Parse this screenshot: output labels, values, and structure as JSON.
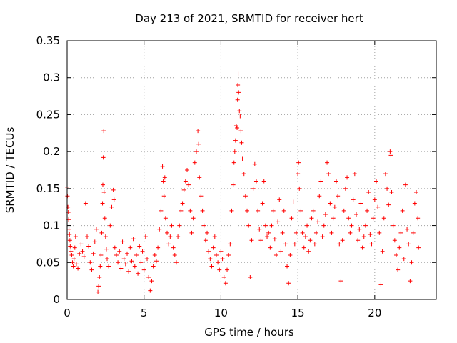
{
  "chart_data": {
    "type": "scatter",
    "title": "Day 213 of 2021, SRMTID for receiver hert",
    "xlabel": "GPS time / hours",
    "ylabel": "SRMTID / TECUs",
    "xlim": [
      0,
      24
    ],
    "ylim": [
      0,
      0.35
    ],
    "xticks": [
      0,
      5,
      10,
      15,
      20
    ],
    "xtick_labels": [
      "0",
      "5",
      "10",
      "15",
      "20"
    ],
    "yticks": [
      0,
      0.05,
      0.1,
      0.15,
      0.2,
      0.25,
      0.3,
      0.35
    ],
    "ytick_labels": [
      "0",
      "0.05",
      "0.1",
      "0.15",
      "0.2",
      "0.25",
      "0.3",
      "0.35"
    ],
    "grid": true,
    "marker": "plus",
    "color": "#ff0000",
    "series": [
      {
        "name": "SRMTID",
        "points": [
          [
            0.0,
            0.152
          ],
          [
            0.02,
            0.14
          ],
          [
            0.05,
            0.125
          ],
          [
            0.08,
            0.118
          ],
          [
            0.1,
            0.108
          ],
          [
            0.12,
            0.095
          ],
          [
            0.15,
            0.088
          ],
          [
            0.18,
            0.08
          ],
          [
            0.2,
            0.072
          ],
          [
            0.25,
            0.065
          ],
          [
            0.3,
            0.06
          ],
          [
            0.35,
            0.05
          ],
          [
            0.4,
            0.045
          ],
          [
            0.45,
            0.055
          ],
          [
            0.5,
            0.07
          ],
          [
            0.55,
            0.085
          ],
          [
            0.6,
            0.048
          ],
          [
            0.7,
            0.042
          ],
          [
            0.8,
            0.062
          ],
          [
            0.9,
            0.075
          ],
          [
            1.0,
            0.065
          ],
          [
            1.1,
            0.058
          ],
          [
            1.2,
            0.13
          ],
          [
            1.3,
            0.085
          ],
          [
            1.4,
            0.072
          ],
          [
            1.5,
            0.05
          ],
          [
            1.6,
            0.04
          ],
          [
            1.7,
            0.062
          ],
          [
            1.8,
            0.078
          ],
          [
            1.9,
            0.095
          ],
          [
            2.0,
            0.01
          ],
          [
            2.05,
            0.018
          ],
          [
            2.1,
            0.03
          ],
          [
            2.15,
            0.045
          ],
          [
            2.2,
            0.06
          ],
          [
            2.25,
            0.09
          ],
          [
            2.3,
            0.13
          ],
          [
            2.32,
            0.155
          ],
          [
            2.35,
            0.192
          ],
          [
            2.38,
            0.228
          ],
          [
            2.4,
            0.145
          ],
          [
            2.45,
            0.11
          ],
          [
            2.5,
            0.085
          ],
          [
            2.55,
            0.068
          ],
          [
            2.6,
            0.055
          ],
          [
            2.7,
            0.045
          ],
          [
            2.8,
            0.1
          ],
          [
            2.9,
            0.125
          ],
          [
            3.0,
            0.148
          ],
          [
            3.05,
            0.135
          ],
          [
            3.1,
            0.07
          ],
          [
            3.2,
            0.06
          ],
          [
            3.3,
            0.05
          ],
          [
            3.4,
            0.065
          ],
          [
            3.5,
            0.042
          ],
          [
            3.6,
            0.078
          ],
          [
            3.7,
            0.055
          ],
          [
            3.8,
            0.048
          ],
          [
            3.9,
            0.062
          ],
          [
            4.0,
            0.038
          ],
          [
            4.1,
            0.07
          ],
          [
            4.2,
            0.052
          ],
          [
            4.3,
            0.082
          ],
          [
            4.4,
            0.045
          ],
          [
            4.5,
            0.06
          ],
          [
            4.6,
            0.035
          ],
          [
            4.7,
            0.072
          ],
          [
            4.8,
            0.05
          ],
          [
            4.9,
            0.065
          ],
          [
            5.0,
            0.04
          ],
          [
            5.1,
            0.085
          ],
          [
            5.2,
            0.055
          ],
          [
            5.3,
            0.03
          ],
          [
            5.4,
            0.012
          ],
          [
            5.5,
            0.025
          ],
          [
            5.6,
            0.045
          ],
          [
            5.7,
            0.06
          ],
          [
            5.8,
            0.052
          ],
          [
            5.9,
            0.07
          ],
          [
            6.0,
            0.095
          ],
          [
            6.1,
            0.12
          ],
          [
            6.2,
            0.18
          ],
          [
            6.25,
            0.16
          ],
          [
            6.3,
            0.14
          ],
          [
            6.35,
            0.165
          ],
          [
            6.4,
            0.11
          ],
          [
            6.5,
            0.09
          ],
          [
            6.6,
            0.075
          ],
          [
            6.7,
            0.085
          ],
          [
            6.8,
            0.1
          ],
          [
            6.9,
            0.07
          ],
          [
            7.0,
            0.06
          ],
          [
            7.1,
            0.05
          ],
          [
            7.2,
            0.085
          ],
          [
            7.3,
            0.1
          ],
          [
            7.4,
            0.12
          ],
          [
            7.5,
            0.13
          ],
          [
            7.6,
            0.148
          ],
          [
            7.7,
            0.16
          ],
          [
            7.8,
            0.175
          ],
          [
            7.9,
            0.155
          ],
          [
            8.0,
            0.12
          ],
          [
            8.1,
            0.09
          ],
          [
            8.2,
            0.11
          ],
          [
            8.3,
            0.185
          ],
          [
            8.4,
            0.2
          ],
          [
            8.5,
            0.228
          ],
          [
            8.55,
            0.21
          ],
          [
            8.6,
            0.165
          ],
          [
            8.7,
            0.14
          ],
          [
            8.8,
            0.12
          ],
          [
            8.9,
            0.1
          ],
          [
            9.0,
            0.08
          ],
          [
            9.1,
            0.09
          ],
          [
            9.2,
            0.065
          ],
          [
            9.3,
            0.055
          ],
          [
            9.4,
            0.045
          ],
          [
            9.5,
            0.07
          ],
          [
            9.6,
            0.085
          ],
          [
            9.7,
            0.06
          ],
          [
            9.8,
            0.05
          ],
          [
            9.9,
            0.04
          ],
          [
            10.0,
            0.065
          ],
          [
            10.1,
            0.055
          ],
          [
            10.2,
            0.03
          ],
          [
            10.3,
            0.022
          ],
          [
            10.4,
            0.04
          ],
          [
            10.5,
            0.06
          ],
          [
            10.6,
            0.075
          ],
          [
            10.7,
            0.12
          ],
          [
            10.8,
            0.155
          ],
          [
            10.85,
            0.185
          ],
          [
            10.9,
            0.2
          ],
          [
            10.95,
            0.215
          ],
          [
            11.0,
            0.235
          ],
          [
            11.05,
            0.232
          ],
          [
            11.08,
            0.27
          ],
          [
            11.1,
            0.29
          ],
          [
            11.12,
            0.305
          ],
          [
            11.15,
            0.28
          ],
          [
            11.2,
            0.255
          ],
          [
            11.25,
            0.248
          ],
          [
            11.3,
            0.228
          ],
          [
            11.35,
            0.212
          ],
          [
            11.4,
            0.19
          ],
          [
            11.5,
            0.17
          ],
          [
            11.6,
            0.14
          ],
          [
            11.7,
            0.12
          ],
          [
            11.8,
            0.1
          ],
          [
            11.9,
            0.03
          ],
          [
            12.0,
            0.08
          ],
          [
            12.1,
            0.15
          ],
          [
            12.2,
            0.183
          ],
          [
            12.3,
            0.16
          ],
          [
            12.4,
            0.12
          ],
          [
            12.5,
            0.095
          ],
          [
            12.6,
            0.08
          ],
          [
            12.7,
            0.13
          ],
          [
            12.8,
            0.16
          ],
          [
            12.9,
            0.1
          ],
          [
            13.0,
            0.085
          ],
          [
            13.1,
            0.09
          ],
          [
            13.2,
            0.07
          ],
          [
            13.3,
            0.1
          ],
          [
            13.4,
            0.12
          ],
          [
            13.5,
            0.082
          ],
          [
            13.6,
            0.06
          ],
          [
            13.7,
            0.105
          ],
          [
            13.8,
            0.135
          ],
          [
            13.9,
            0.065
          ],
          [
            14.0,
            0.09
          ],
          [
            14.1,
            0.12
          ],
          [
            14.2,
            0.075
          ],
          [
            14.3,
            0.045
          ],
          [
            14.4,
            0.022
          ],
          [
            14.5,
            0.06
          ],
          [
            14.6,
            0.11
          ],
          [
            14.7,
            0.132
          ],
          [
            14.8,
            0.075
          ],
          [
            14.9,
            0.09
          ],
          [
            15.0,
            0.17
          ],
          [
            15.05,
            0.185
          ],
          [
            15.1,
            0.15
          ],
          [
            15.2,
            0.12
          ],
          [
            15.3,
            0.09
          ],
          [
            15.4,
            0.07
          ],
          [
            15.5,
            0.085
          ],
          [
            15.6,
            0.1
          ],
          [
            15.7,
            0.065
          ],
          [
            15.8,
            0.08
          ],
          [
            15.9,
            0.11
          ],
          [
            16.0,
            0.12
          ],
          [
            16.1,
            0.075
          ],
          [
            16.2,
            0.09
          ],
          [
            16.3,
            0.105
          ],
          [
            16.4,
            0.14
          ],
          [
            16.5,
            0.16
          ],
          [
            16.6,
            0.085
          ],
          [
            16.7,
            0.1
          ],
          [
            16.8,
            0.115
          ],
          [
            16.9,
            0.185
          ],
          [
            17.0,
            0.17
          ],
          [
            17.1,
            0.13
          ],
          [
            17.2,
            0.09
          ],
          [
            17.3,
            0.11
          ],
          [
            17.4,
            0.125
          ],
          [
            17.5,
            0.16
          ],
          [
            17.6,
            0.14
          ],
          [
            17.7,
            0.075
          ],
          [
            17.8,
            0.025
          ],
          [
            17.9,
            0.08
          ],
          [
            18.0,
            0.12
          ],
          [
            18.1,
            0.15
          ],
          [
            18.2,
            0.165
          ],
          [
            18.3,
            0.11
          ],
          [
            18.4,
            0.09
          ],
          [
            18.5,
            0.1
          ],
          [
            18.6,
            0.135
          ],
          [
            18.7,
            0.17
          ],
          [
            18.8,
            0.115
          ],
          [
            18.9,
            0.08
          ],
          [
            19.0,
            0.095
          ],
          [
            19.1,
            0.13
          ],
          [
            19.2,
            0.07
          ],
          [
            19.3,
            0.085
          ],
          [
            19.4,
            0.1
          ],
          [
            19.5,
            0.12
          ],
          [
            19.6,
            0.145
          ],
          [
            19.7,
            0.088
          ],
          [
            19.8,
            0.075
          ],
          [
            19.9,
            0.11
          ],
          [
            20.0,
            0.135
          ],
          [
            20.1,
            0.16
          ],
          [
            20.2,
            0.125
          ],
          [
            20.3,
            0.09
          ],
          [
            20.4,
            0.02
          ],
          [
            20.5,
            0.065
          ],
          [
            20.6,
            0.11
          ],
          [
            20.7,
            0.17
          ],
          [
            20.8,
            0.15
          ],
          [
            20.9,
            0.128
          ],
          [
            21.0,
            0.2
          ],
          [
            21.05,
            0.195
          ],
          [
            21.1,
            0.145
          ],
          [
            21.2,
            0.1
          ],
          [
            21.3,
            0.08
          ],
          [
            21.4,
            0.06
          ],
          [
            21.5,
            0.04
          ],
          [
            21.6,
            0.07
          ],
          [
            21.7,
            0.09
          ],
          [
            21.8,
            0.12
          ],
          [
            21.9,
            0.055
          ],
          [
            22.0,
            0.155
          ],
          [
            22.1,
            0.095
          ],
          [
            22.2,
            0.075
          ],
          [
            22.3,
            0.025
          ],
          [
            22.4,
            0.05
          ],
          [
            22.5,
            0.09
          ],
          [
            22.6,
            0.13
          ],
          [
            22.7,
            0.145
          ],
          [
            22.8,
            0.11
          ],
          [
            22.85,
            0.07
          ]
        ]
      }
    ]
  }
}
